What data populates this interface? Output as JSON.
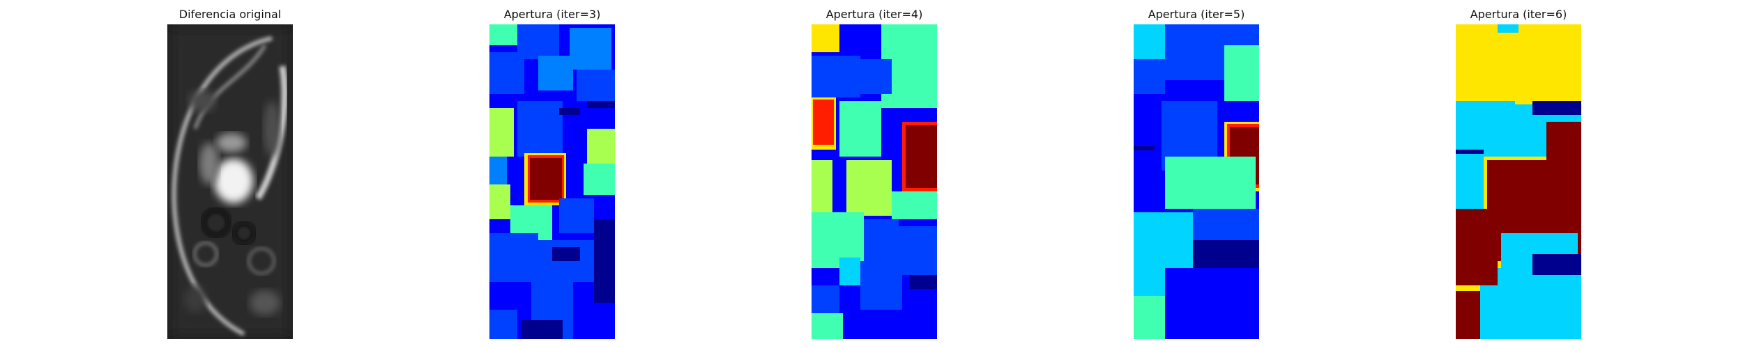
{
  "figure": {
    "panels": [
      {
        "title": "Diferencia original"
      },
      {
        "title": "Apertura (iter=3)"
      },
      {
        "title": "Apertura (iter=4)"
      },
      {
        "title": "Apertura (iter=5)"
      },
      {
        "title": "Apertura (iter=6)"
      }
    ]
  },
  "palette": {
    "background": "#ffffff",
    "dark_navy": "#00008f",
    "blue": "#0000ff",
    "mid_blue": "#0040ff",
    "light_blue": "#0080ff",
    "cyan": "#00d4ff",
    "aquamarine": "#40ffb0",
    "yellow_green": "#a8ff50",
    "yellow": "#ffe600",
    "red": "#ff1e00",
    "dark_red": "#800000"
  }
}
